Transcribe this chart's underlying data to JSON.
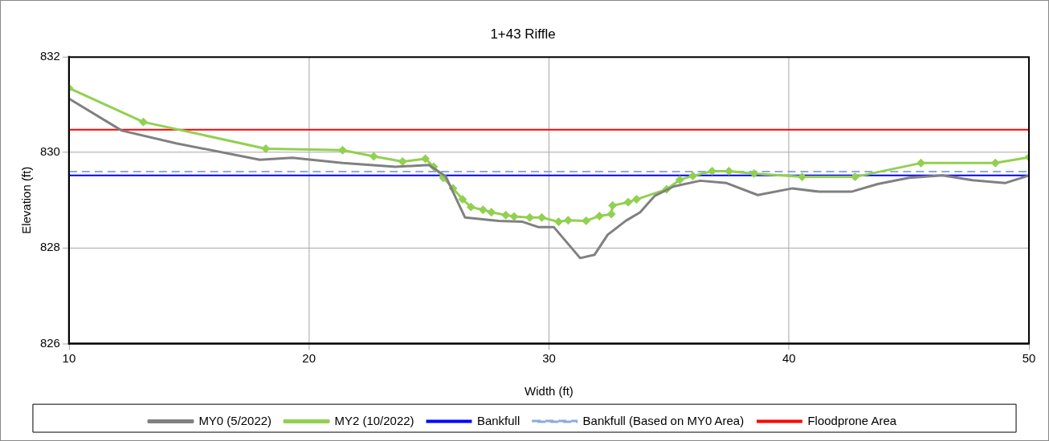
{
  "chart_data": {
    "type": "line",
    "title": "1+43 Riffle",
    "xlabel": "Width (ft)",
    "ylabel": "Elevation (ft)",
    "xlim": [
      10,
      50
    ],
    "xticks": [
      10,
      20,
      30,
      40,
      50
    ],
    "ylim": [
      826,
      832
    ],
    "yticks": [
      826,
      828,
      830,
      832
    ],
    "grid": true,
    "legend": "bottom",
    "line_style": "solid",
    "series": [
      {
        "name": "MY0 (5/2022)",
        "color": "#808080",
        "marker": "none",
        "x": [
          10,
          12.2,
          14.5,
          17.95,
          19.3,
          21.4,
          23.6,
          25.0,
          25.7,
          26.5,
          27.9,
          28.9,
          29.55,
          30.2,
          31.3,
          31.9,
          32.45,
          33.2,
          33.8,
          34.4,
          35.2,
          36.3,
          37.4,
          38.7,
          40.15,
          41.25,
          42.6,
          43.7,
          45.0,
          46.4,
          47.65,
          49.0,
          50
        ],
        "values": [
          831.13,
          830.46,
          830.19,
          829.85,
          829.89,
          829.78,
          829.7,
          829.74,
          829.5,
          828.64,
          828.57,
          828.55,
          828.44,
          828.44,
          827.79,
          827.86,
          828.28,
          828.57,
          828.75,
          829.09,
          829.29,
          829.41,
          829.36,
          829.11,
          829.25,
          829.18,
          829.18,
          829.34,
          829.47,
          829.52,
          829.42,
          829.36,
          829.52
        ]
      },
      {
        "name": "MY2 (10/2022)",
        "color": "#92d050",
        "marker": "diamond",
        "x": [
          10,
          13.1,
          18.2,
          21.4,
          22.7,
          23.9,
          24.85,
          25.2,
          25.6,
          26.0,
          26.4,
          26.75,
          27.25,
          27.6,
          28.2,
          28.55,
          29.2,
          29.7,
          30.4,
          30.8,
          31.55,
          32.1,
          32.6,
          32.65,
          33.3,
          33.65,
          34.9,
          35.45,
          36.0,
          36.8,
          37.5,
          38.55,
          40.55,
          42.75,
          45.5,
          48.6,
          50
        ],
        "values": [
          831.35,
          830.64,
          830.08,
          830.05,
          829.92,
          829.81,
          829.87,
          829.7,
          829.47,
          829.25,
          829.02,
          828.86,
          828.8,
          828.75,
          828.69,
          828.66,
          828.64,
          828.64,
          828.55,
          828.58,
          828.57,
          828.67,
          828.71,
          828.89,
          828.96,
          829.02,
          829.23,
          829.43,
          829.51,
          829.61,
          829.61,
          829.56,
          829.49,
          829.49,
          829.78,
          829.78,
          829.9
        ]
      }
    ],
    "ref_lines": [
      {
        "axis": "y",
        "value": 829.52,
        "label": "Bankfull",
        "color": "#0000ff",
        "line_style": "solid"
      },
      {
        "axis": "y",
        "value": 829.6,
        "label": "Bankfull (Based on MY0 Area)",
        "color": "#8eaadb",
        "line_style": "dashed"
      },
      {
        "axis": "y",
        "value": 830.48,
        "label": "Floodprone Area",
        "color": "#ff0000",
        "line_style": "solid"
      }
    ]
  }
}
